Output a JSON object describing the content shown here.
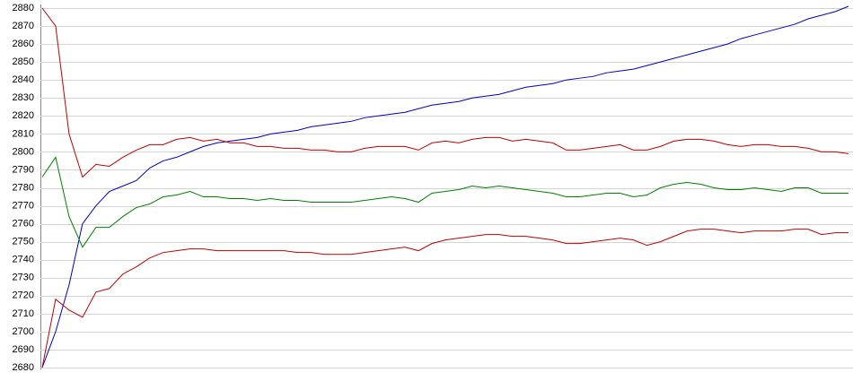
{
  "chart_data": {
    "type": "line",
    "ylim": [
      2680,
      2880
    ],
    "yticks": [
      2680,
      2690,
      2700,
      2710,
      2720,
      2730,
      2740,
      2750,
      2760,
      2770,
      2780,
      2790,
      2800,
      2810,
      2820,
      2830,
      2840,
      2850,
      2860,
      2870,
      2880
    ],
    "grid": true,
    "series": [
      {
        "color": "#0000c8",
        "values": [
          2680,
          2700,
          2726,
          2760,
          2770,
          2778,
          2781,
          2784,
          2791,
          2795,
          2797,
          2800,
          2803,
          2805,
          2806,
          2807,
          2808,
          2810,
          2811,
          2812,
          2814,
          2815,
          2816,
          2817,
          2819,
          2820,
          2821,
          2822,
          2824,
          2826,
          2827,
          2828,
          2830,
          2831,
          2832,
          2834,
          2836,
          2837,
          2838,
          2840,
          2841,
          2842,
          2844,
          2845,
          2846,
          2848,
          2850,
          2852,
          2854,
          2856,
          2858,
          2860,
          2863,
          2865,
          2867,
          2869,
          2871,
          2874,
          2876,
          2878,
          2881
        ]
      },
      {
        "color": "#c00000",
        "values": [
          2880,
          2870,
          2810,
          2786,
          2793,
          2792,
          2797,
          2801,
          2804,
          2804,
          2807,
          2808,
          2806,
          2807,
          2805,
          2805,
          2803,
          2803,
          2802,
          2802,
          2801,
          2801,
          2800,
          2800,
          2802,
          2803,
          2803,
          2803,
          2801,
          2805,
          2806,
          2805,
          2807,
          2808,
          2808,
          2806,
          2807,
          2806,
          2805,
          2801,
          2801,
          2802,
          2803,
          2804,
          2801,
          2801,
          2803,
          2806,
          2807,
          2807,
          2806,
          2804,
          2803,
          2804,
          2804,
          2803,
          2803,
          2802,
          2800,
          2800,
          2799
        ]
      },
      {
        "color": "#008000",
        "values": [
          2786,
          2797,
          2764,
          2747,
          2758,
          2758,
          2764,
          2769,
          2771,
          2775,
          2776,
          2778,
          2775,
          2775,
          2774,
          2774,
          2773,
          2774,
          2773,
          2773,
          2772,
          2772,
          2772,
          2772,
          2773,
          2774,
          2775,
          2774,
          2772,
          2777,
          2778,
          2779,
          2781,
          2780,
          2781,
          2780,
          2779,
          2778,
          2777,
          2775,
          2775,
          2776,
          2777,
          2777,
          2775,
          2776,
          2780,
          2782,
          2783,
          2782,
          2780,
          2779,
          2779,
          2780,
          2779,
          2778,
          2780,
          2780,
          2777,
          2777,
          2777
        ]
      },
      {
        "color": "#c00000",
        "values": [
          2680,
          2718,
          2712,
          2708,
          2722,
          2724,
          2732,
          2736,
          2741,
          2744,
          2745,
          2746,
          2746,
          2745,
          2745,
          2745,
          2745,
          2745,
          2745,
          2744,
          2744,
          2743,
          2743,
          2743,
          2744,
          2745,
          2746,
          2747,
          2745,
          2749,
          2751,
          2752,
          2753,
          2754,
          2754,
          2753,
          2753,
          2752,
          2751,
          2749,
          2749,
          2750,
          2751,
          2752,
          2751,
          2748,
          2750,
          2753,
          2756,
          2757,
          2757,
          2756,
          2755,
          2756,
          2756,
          2756,
          2757,
          2757,
          2754,
          2755,
          2755
        ]
      }
    ]
  }
}
